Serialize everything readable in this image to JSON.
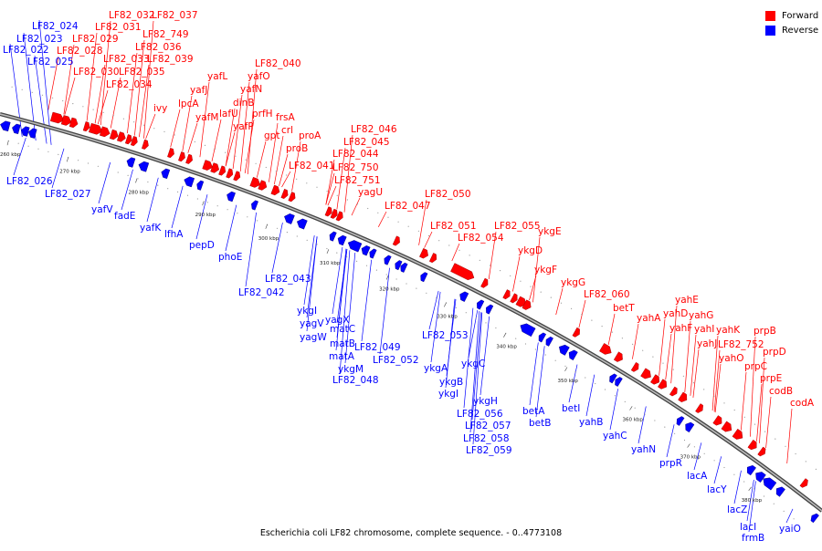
{
  "colors": {
    "forward": "#ff0000",
    "reverse": "#0000ff",
    "backbone": "#777777"
  },
  "legend": [
    {
      "name": "Forward",
      "color": "#ff0000"
    },
    {
      "name": "Reverse",
      "color": "#0000ff"
    }
  ],
  "caption": "Escherichia coli LF82 chromosome, complete sequence. - 0..4773108",
  "ticks": [
    "260 kbp",
    "270 kbp",
    "280 kbp",
    "290 kbp",
    "300 kbp",
    "310 kbp",
    "320 kbp",
    "330 kbp",
    "340 kbp",
    "350 kbp",
    "360 kbp",
    "370 kbp",
    "380 kbp"
  ],
  "forward_labels": [
    "LF82_032",
    "LF82_037",
    "LF82_031",
    "LF82_749",
    "LF82_029",
    "LF82_036",
    "LF82_028",
    "LF82_033",
    "LF82_039",
    "LF82_030",
    "LF82_035",
    "LF82_034",
    "ivy",
    "lpcA",
    "yafJ",
    "yafL",
    "yafM",
    "yafO",
    "yafN",
    "LF82_040",
    "dinB",
    "lafU",
    "prfH",
    "yafP",
    "frsA",
    "crl",
    "gpt",
    "proA",
    "proB",
    "LF82_041",
    "LF82_046",
    "LF82_045",
    "LF82_044",
    "LF82_750",
    "LF82_751",
    "yagU",
    "LF82_047",
    "LF82_050",
    "LF82_051",
    "LF82_054",
    "LF82_055",
    "ykgE",
    "ykgD",
    "ykgF",
    "ykgG",
    "LF82_060",
    "betT",
    "yahE",
    "yahA",
    "yahD",
    "yahG",
    "yahF",
    "yahI",
    "yahJ",
    "yahK",
    "LF82_752",
    "prpB",
    "yahO",
    "prpD",
    "prpC",
    "prpE",
    "codB",
    "codA"
  ],
  "reverse_labels": [
    "LF82_024",
    "LF82_023",
    "LF82_022",
    "LF82_025",
    "LF82_026",
    "LF82_027",
    "yafV",
    "fadE",
    "yafK",
    "lfhA",
    "pepD",
    "phoE",
    "LF82_043",
    "LF82_042",
    "ykgI",
    "yagV",
    "yagX",
    "yagW",
    "matC",
    "matB",
    "matA",
    "LF82_049",
    "ykgM",
    "LF82_048",
    "LF82_052",
    "LF82_053",
    "ykgA",
    "ykgB",
    "ykgC",
    "ykgI",
    "ykgH",
    "LF82_056",
    "LF82_057",
    "LF82_058",
    "LF82_059",
    "betA",
    "betB",
    "betI",
    "yahB",
    "yahC",
    "yahN",
    "prpR",
    "lacA",
    "lacY",
    "lacZ",
    "lacI",
    "frmB",
    "yaiO"
  ]
}
